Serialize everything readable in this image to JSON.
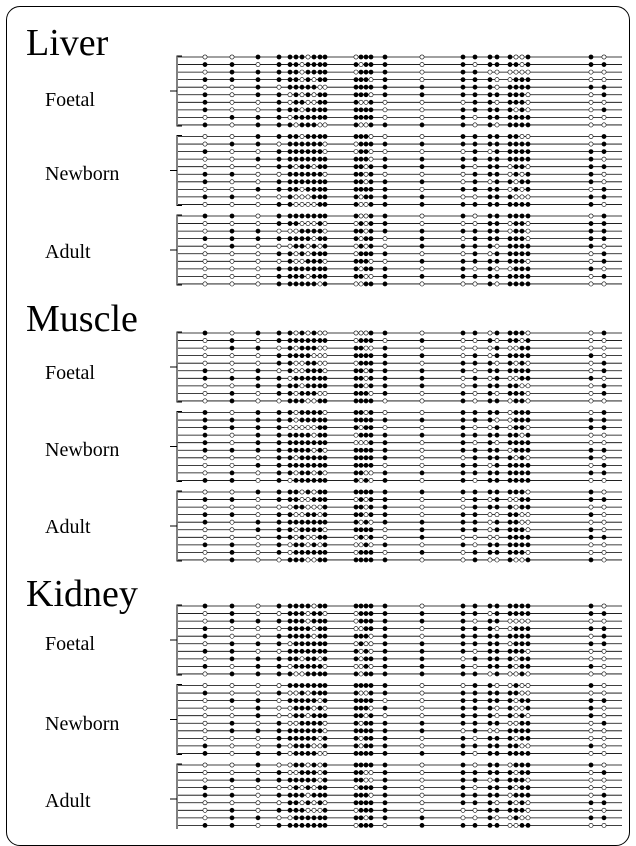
{
  "tissues": [
    {
      "name": "Liver",
      "groups": [
        {
          "label": "Foetal",
          "count": 10
        },
        {
          "label": "Newborn",
          "count": 10
        },
        {
          "label": "Adult",
          "count": 10
        }
      ]
    },
    {
      "name": "Muscle",
      "groups": [
        {
          "label": "Foetal",
          "count": 10
        },
        {
          "label": "Newborn",
          "count": 10
        },
        {
          "label": "Adult",
          "count": 10
        }
      ]
    },
    {
      "name": "Kidney",
      "groups": [
        {
          "label": "Foetal",
          "count": 10
        },
        {
          "label": "Newborn",
          "count": 10
        },
        {
          "label": "Adult",
          "count": 10
        }
      ]
    }
  ],
  "colors": {
    "methylated": "#000000",
    "unmethylated": "#ffffff",
    "line": "#000000"
  }
}
